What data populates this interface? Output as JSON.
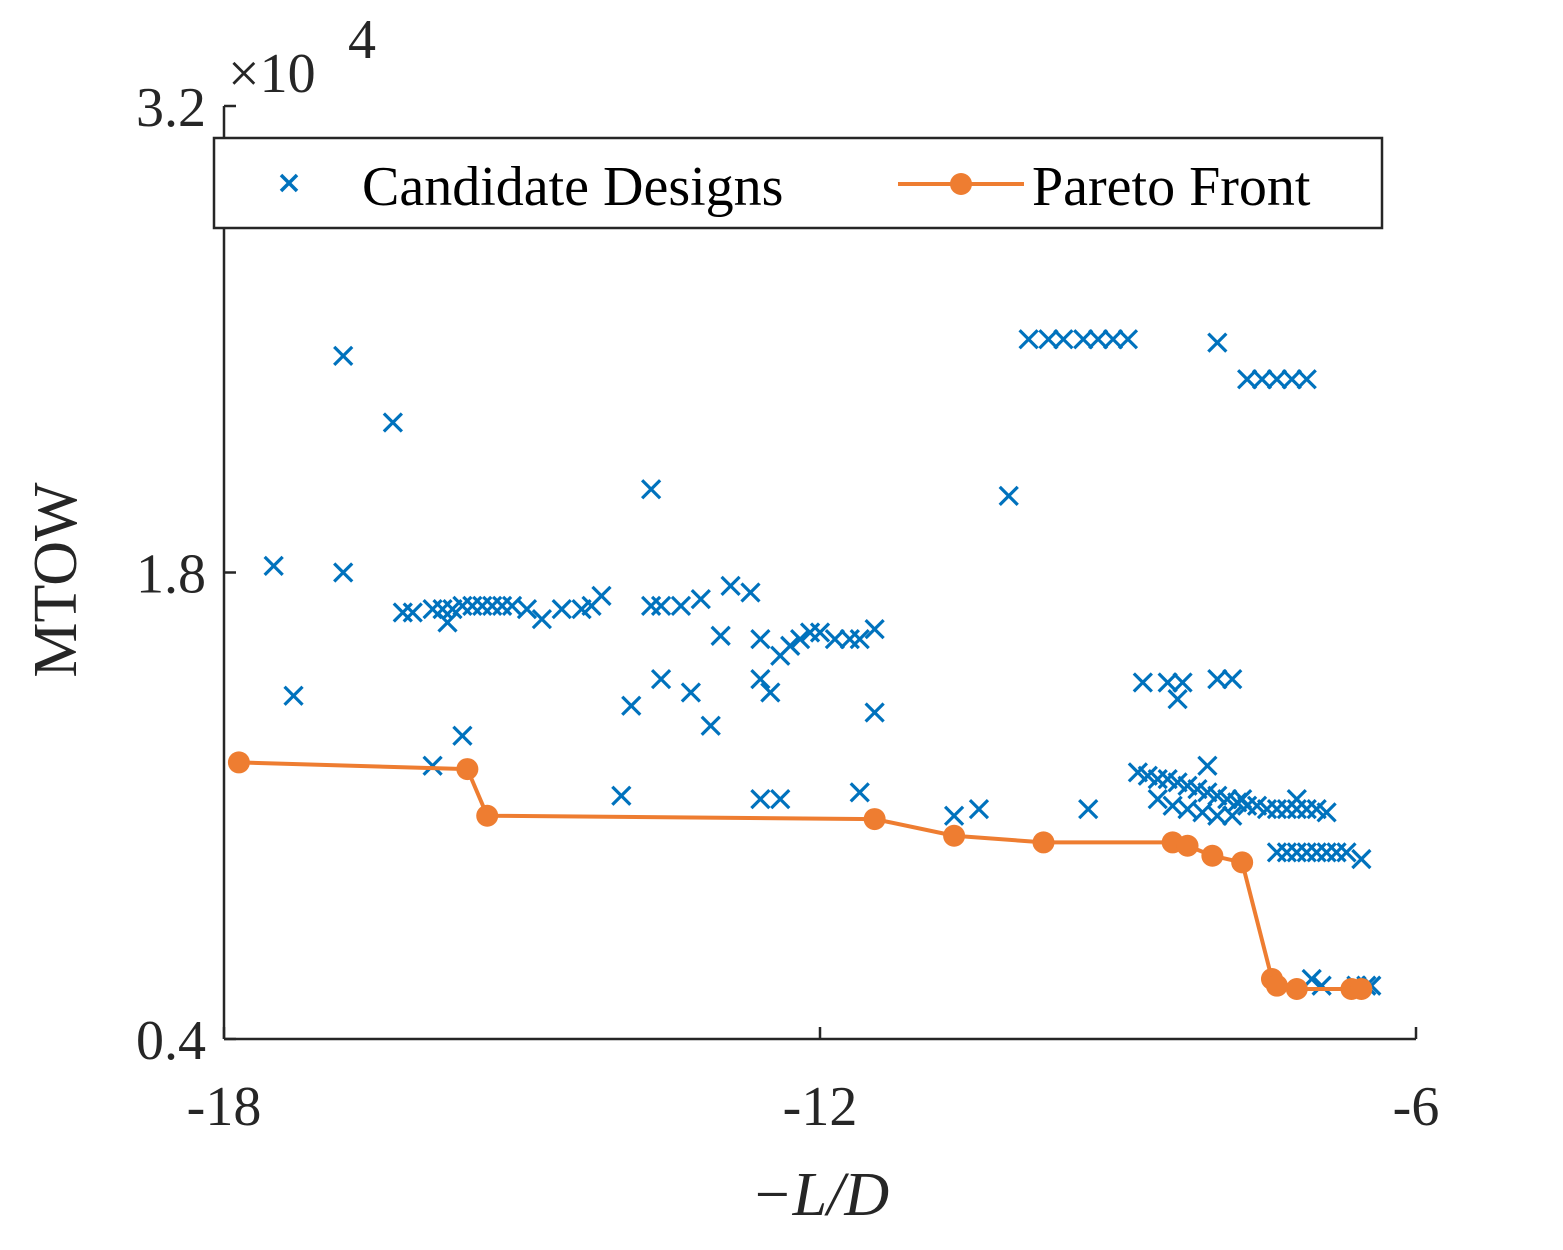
{
  "chart_data": {
    "type": "scatter",
    "xlabel": "−L/D",
    "ylabel": "MTOW",
    "xlim": [
      -18,
      -6
    ],
    "ylim": [
      0.4,
      3.2
    ],
    "y_multiplier_label": "×10",
    "y_multiplier_exponent": "4",
    "x_ticks": [
      {
        "value": -18,
        "label": "-18"
      },
      {
        "value": -12,
        "label": "-12"
      },
      {
        "value": -6,
        "label": "-6"
      }
    ],
    "y_ticks": [
      {
        "value": 0.4,
        "label": "0.4"
      },
      {
        "value": 1.8,
        "label": "1.8"
      },
      {
        "value": 3.2,
        "label": "3.2"
      }
    ],
    "grid": false,
    "legend_position": "top",
    "series": [
      {
        "name": "Candidate Designs",
        "marker": "x",
        "color": "#0072BD",
        "points": [
          [
            -16.8,
            2.45
          ],
          [
            -16.3,
            2.25
          ],
          [
            -17.5,
            1.82
          ],
          [
            -16.8,
            1.8
          ],
          [
            -17.3,
            1.43
          ],
          [
            -16.2,
            1.68
          ],
          [
            -16.1,
            1.68
          ],
          [
            -15.9,
            1.69
          ],
          [
            -15.8,
            1.69
          ],
          [
            -15.7,
            1.69
          ],
          [
            -15.6,
            1.7
          ],
          [
            -15.5,
            1.7
          ],
          [
            -15.4,
            1.7
          ],
          [
            -15.3,
            1.7
          ],
          [
            -15.2,
            1.7
          ],
          [
            -15.1,
            1.7
          ],
          [
            -14.95,
            1.69
          ],
          [
            -15.75,
            1.65
          ],
          [
            -14.8,
            1.66
          ],
          [
            -14.6,
            1.69
          ],
          [
            -14.4,
            1.69
          ],
          [
            -14.3,
            1.7
          ],
          [
            -14.2,
            1.73
          ],
          [
            -13.7,
            1.7
          ],
          [
            -13.6,
            1.7
          ],
          [
            -13.4,
            1.7
          ],
          [
            -13.1,
            1.34
          ],
          [
            -12.9,
            1.76
          ],
          [
            -12.7,
            1.74
          ],
          [
            -15.6,
            1.31
          ],
          [
            -13.9,
            1.4
          ],
          [
            -13.6,
            1.48
          ],
          [
            -13.3,
            1.44
          ],
          [
            -13.2,
            1.72
          ],
          [
            -13.0,
            1.61
          ],
          [
            -12.6,
            1.6
          ],
          [
            -12.6,
            1.48
          ],
          [
            -12.5,
            1.44
          ],
          [
            -12.4,
            1.55
          ],
          [
            -12.3,
            1.58
          ],
          [
            -12.2,
            1.6
          ],
          [
            -12.1,
            1.62
          ],
          [
            -12.0,
            1.62
          ],
          [
            -11.85,
            1.6
          ],
          [
            -11.7,
            1.6
          ],
          [
            -11.6,
            1.6
          ],
          [
            -11.45,
            1.63
          ],
          [
            -11.45,
            1.38
          ],
          [
            -11.6,
            1.14
          ],
          [
            -12.6,
            1.12
          ],
          [
            -12.4,
            1.12
          ],
          [
            -14.0,
            1.13
          ],
          [
            -15.9,
            1.22
          ],
          [
            -10.65,
            1.07
          ],
          [
            -10.4,
            1.09
          ],
          [
            -13.7,
            2.05
          ],
          [
            -10.1,
            2.03
          ],
          [
            -9.3,
            1.09
          ],
          [
            -9.9,
            2.5
          ],
          [
            -9.7,
            2.5
          ],
          [
            -9.55,
            2.5
          ],
          [
            -9.35,
            2.5
          ],
          [
            -9.2,
            2.5
          ],
          [
            -9.05,
            2.5
          ],
          [
            -8.9,
            2.5
          ],
          [
            -8.0,
            2.49
          ],
          [
            -7.7,
            2.38
          ],
          [
            -7.55,
            2.38
          ],
          [
            -7.4,
            2.38
          ],
          [
            -7.25,
            2.38
          ],
          [
            -7.1,
            2.38
          ],
          [
            -8.75,
            1.47
          ],
          [
            -8.5,
            1.47
          ],
          [
            -8.35,
            1.47
          ],
          [
            -8.4,
            1.42
          ],
          [
            -8.0,
            1.48
          ],
          [
            -7.85,
            1.48
          ],
          [
            -8.1,
            1.22
          ],
          [
            -8.8,
            1.2
          ],
          [
            -8.7,
            1.19
          ],
          [
            -8.6,
            1.18
          ],
          [
            -8.5,
            1.18
          ],
          [
            -8.4,
            1.17
          ],
          [
            -8.3,
            1.16
          ],
          [
            -8.2,
            1.15
          ],
          [
            -8.1,
            1.14
          ],
          [
            -8.0,
            1.13
          ],
          [
            -7.9,
            1.12
          ],
          [
            -7.8,
            1.11
          ],
          [
            -7.7,
            1.1
          ],
          [
            -8.6,
            1.12
          ],
          [
            -8.45,
            1.1
          ],
          [
            -8.3,
            1.09
          ],
          [
            -8.15,
            1.08
          ],
          [
            -8.0,
            1.07
          ],
          [
            -7.85,
            1.07
          ],
          [
            -7.75,
            1.12
          ],
          [
            -7.6,
            1.1
          ],
          [
            -7.5,
            1.09
          ],
          [
            -7.4,
            1.09
          ],
          [
            -7.3,
            1.09
          ],
          [
            -7.2,
            1.09
          ],
          [
            -7.1,
            1.09
          ],
          [
            -7.0,
            1.09
          ],
          [
            -6.9,
            1.08
          ],
          [
            -7.2,
            1.12
          ],
          [
            -7.4,
            0.96
          ],
          [
            -7.3,
            0.96
          ],
          [
            -7.2,
            0.96
          ],
          [
            -7.1,
            0.96
          ],
          [
            -7.0,
            0.96
          ],
          [
            -6.9,
            0.96
          ],
          [
            -6.8,
            0.96
          ],
          [
            -6.7,
            0.96
          ],
          [
            -6.55,
            0.94
          ],
          [
            -7.05,
            0.58
          ],
          [
            -6.95,
            0.56
          ],
          [
            -6.6,
            0.56
          ],
          [
            -6.5,
            0.56
          ],
          [
            -6.45,
            0.56
          ]
        ]
      },
      {
        "name": "Pareto Front",
        "marker": "o",
        "color": "#EE7D31",
        "points": [
          [
            -17.85,
            1.23
          ],
          [
            -15.55,
            1.21
          ],
          [
            -15.35,
            1.07
          ],
          [
            -11.45,
            1.06
          ],
          [
            -10.65,
            1.01
          ],
          [
            -9.75,
            0.99
          ],
          [
            -8.45,
            0.99
          ],
          [
            -8.3,
            0.98
          ],
          [
            -8.05,
            0.95
          ],
          [
            -7.75,
            0.93
          ],
          [
            -7.45,
            0.58
          ],
          [
            -7.4,
            0.56
          ],
          [
            -7.2,
            0.55
          ],
          [
            -6.65,
            0.55
          ],
          [
            -6.55,
            0.55
          ]
        ]
      }
    ]
  }
}
